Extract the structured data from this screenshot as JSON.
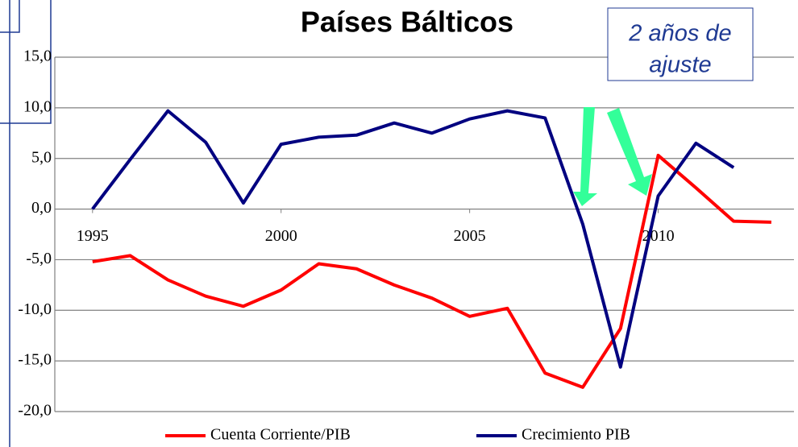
{
  "chart_data": {
    "type": "line",
    "title": "Países Bálticos",
    "annotation": [
      "2 años de",
      "ajuste"
    ],
    "x": [
      1995,
      1996,
      1997,
      1998,
      1999,
      2000,
      2001,
      2002,
      2003,
      2004,
      2005,
      2006,
      2007,
      2008,
      2009,
      2010,
      2011,
      2012,
      2013
    ],
    "series": [
      {
        "name": "Cuenta Corriente/PIB",
        "color": "#ff0000",
        "values": [
          -5.2,
          -4.6,
          -7.0,
          -8.6,
          -9.6,
          -8.0,
          -5.4,
          -5.9,
          -7.5,
          -8.8,
          -10.6,
          -9.8,
          -16.2,
          -17.6,
          -11.8,
          5.3,
          2.1,
          -1.2,
          -1.3
        ]
      },
      {
        "name": "Crecimiento PIB",
        "color": "#000080",
        "values": [
          0.0,
          4.9,
          9.7,
          6.6,
          0.6,
          6.4,
          7.1,
          7.3,
          8.5,
          7.5,
          8.9,
          9.7,
          9.0,
          -1.5,
          -15.6,
          1.3,
          6.5,
          4.1,
          null
        ]
      }
    ],
    "xlim": [
      1994,
      2013.6
    ],
    "xticks": [
      1995,
      2000,
      2005,
      2010
    ],
    "ylim": [
      -20,
      15
    ],
    "yticks": [
      {
        "value": -20,
        "label": "-20,0"
      },
      {
        "value": -15,
        "label": "-15,0"
      },
      {
        "value": -10,
        "label": "-10,0"
      },
      {
        "value": -5,
        "label": "-5,0"
      },
      {
        "value": 0,
        "label": "0,0"
      },
      {
        "value": 5,
        "label": "5,0"
      },
      {
        "value": 10,
        "label": "10,0"
      },
      {
        "value": 15,
        "label": "15,0"
      }
    ],
    "grid": true,
    "legend": "bottom"
  }
}
